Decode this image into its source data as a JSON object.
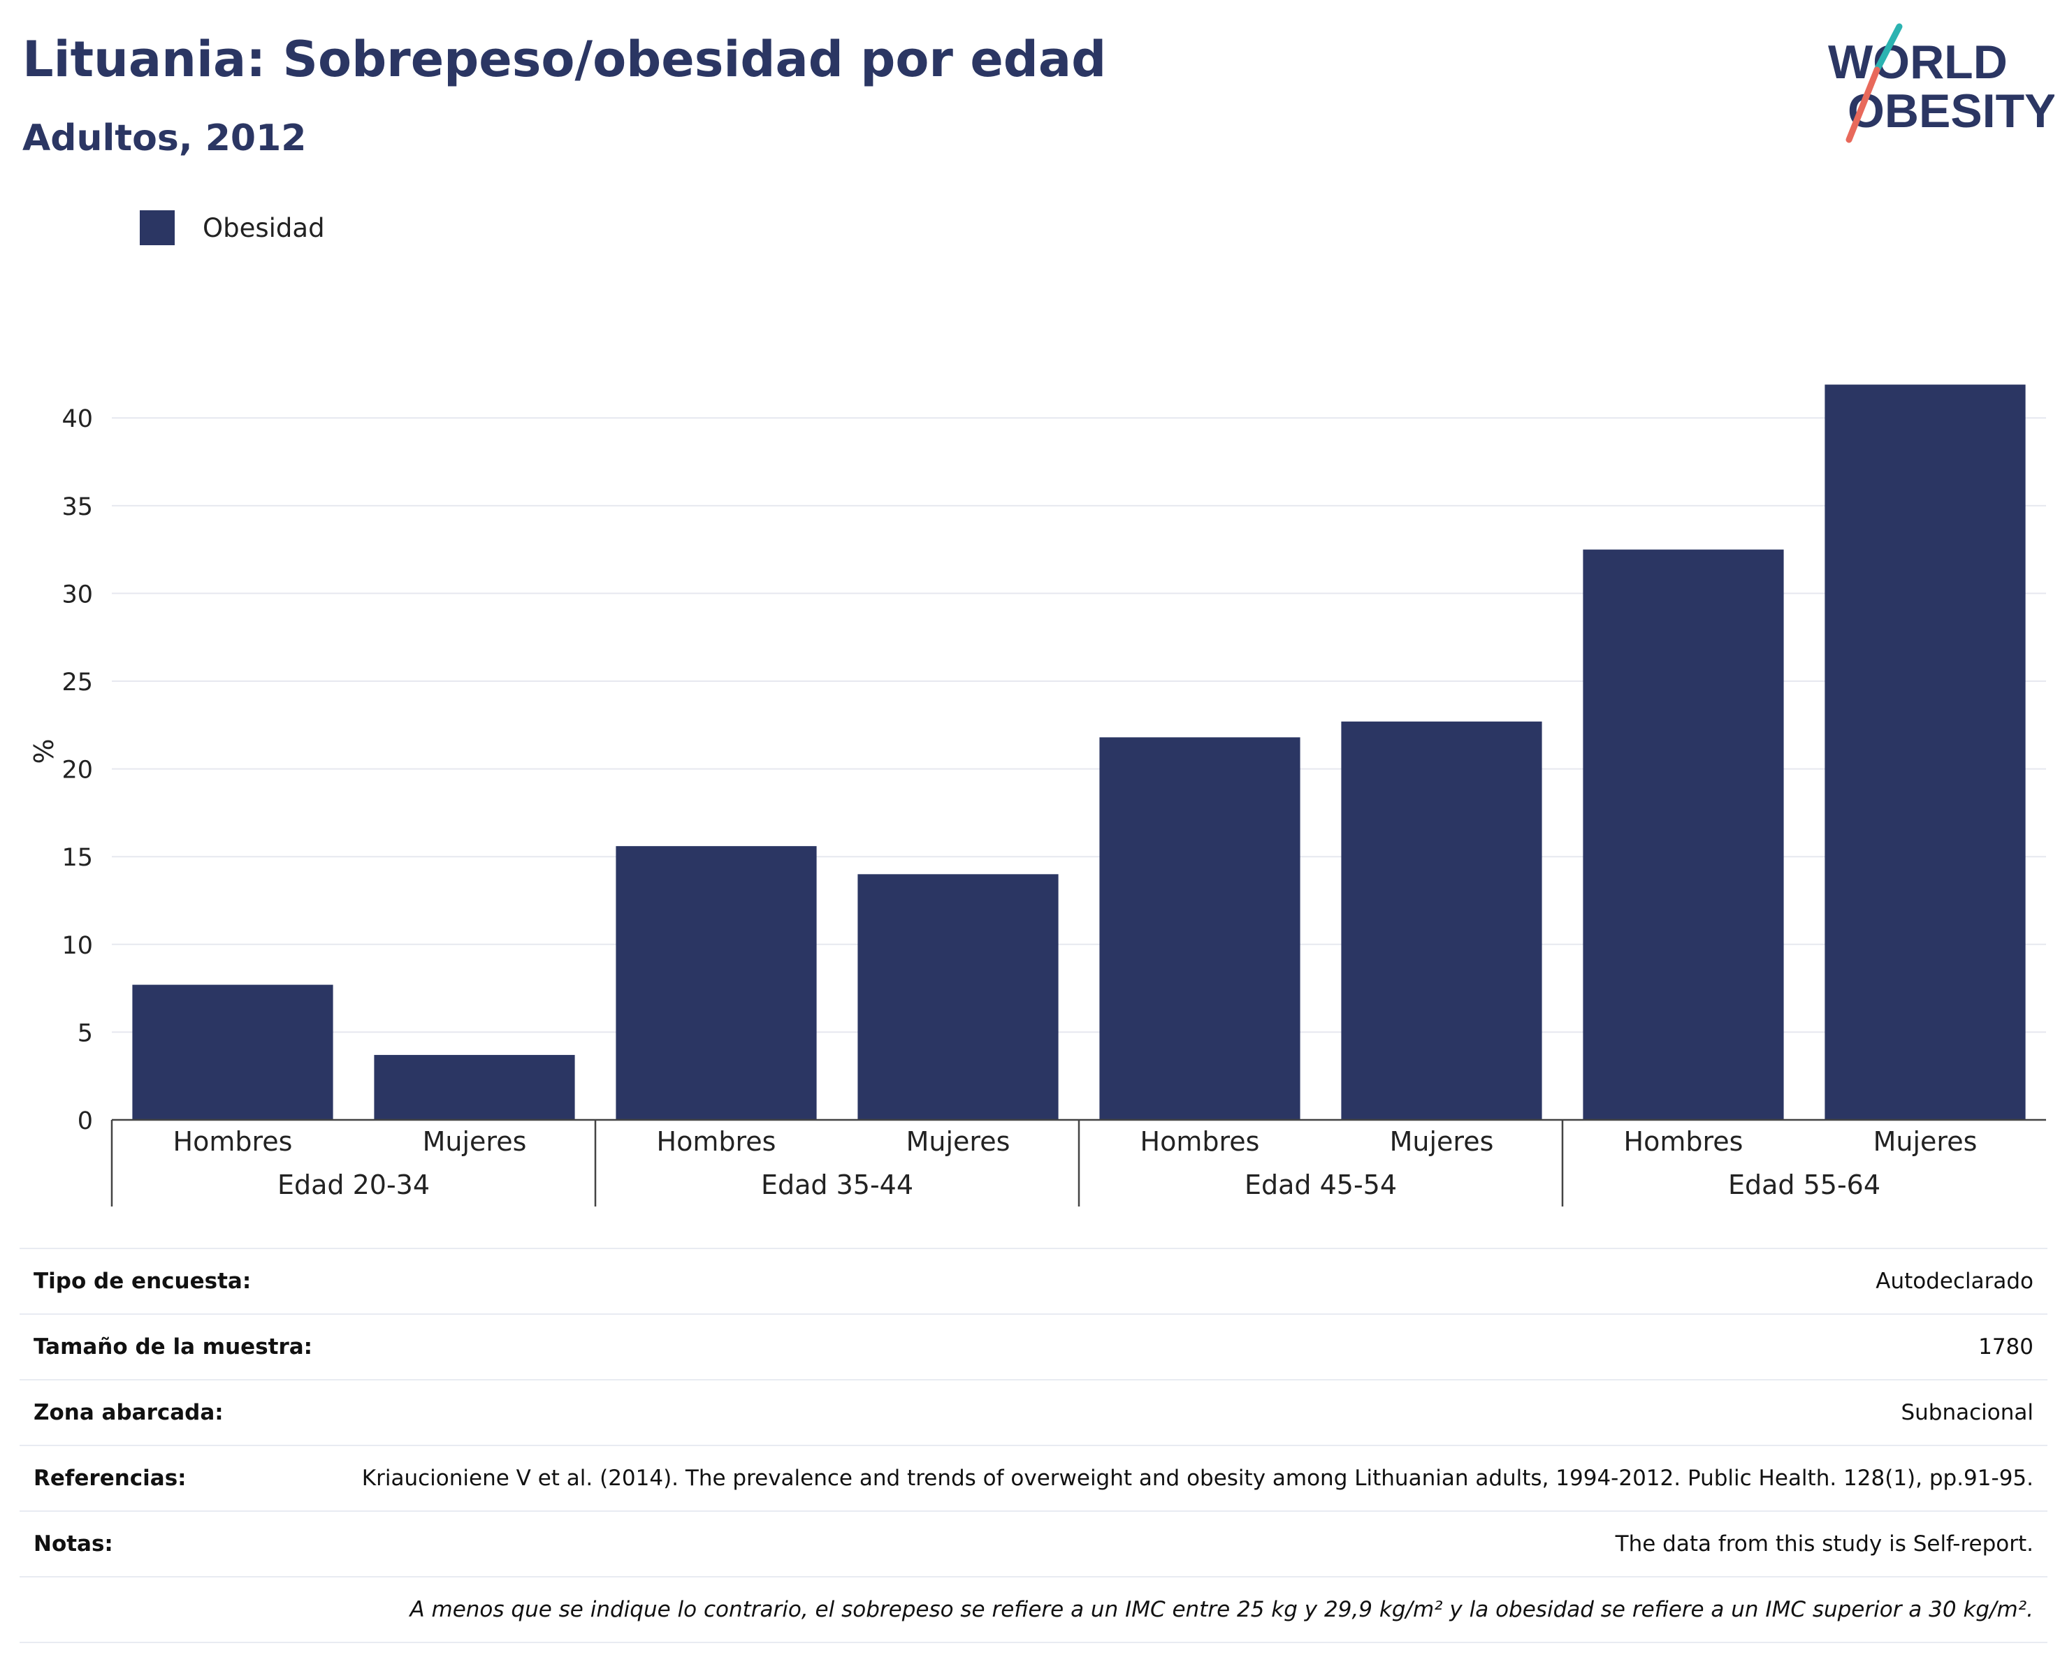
{
  "header": {
    "title": "Lituania: Sobrepeso/obesidad por edad",
    "subtitle": "Adultos, 2012"
  },
  "logo": {
    "line1": "WORLD",
    "line2": "OBESITY",
    "icon": "world-obesity-logo"
  },
  "legend": {
    "items": [
      {
        "label": "Obesidad",
        "color": "#2b3663"
      }
    ]
  },
  "chart_data": {
    "type": "bar",
    "ylabel": "%",
    "ylim": [
      0,
      42
    ],
    "yticks": [
      0,
      5,
      10,
      15,
      20,
      25,
      30,
      35,
      40
    ],
    "grid": true,
    "groups": [
      {
        "label": "Edad 20-34",
        "categories": [
          "Hombres",
          "Mujeres"
        ],
        "values": [
          7.7,
          3.7
        ]
      },
      {
        "label": "Edad 35-44",
        "categories": [
          "Hombres",
          "Mujeres"
        ],
        "values": [
          15.6,
          14.0
        ]
      },
      {
        "label": "Edad 45-54",
        "categories": [
          "Hombres",
          "Mujeres"
        ],
        "values": [
          21.8,
          22.7
        ]
      },
      {
        "label": "Edad 55-64",
        "categories": [
          "Hombres",
          "Mujeres"
        ],
        "values": [
          32.5,
          41.9
        ]
      }
    ],
    "series": [
      {
        "name": "Obesidad",
        "color": "#2b3663"
      }
    ]
  },
  "info": {
    "rows": [
      {
        "label": "Tipo de encuesta:",
        "value": "Autodeclarado"
      },
      {
        "label": "Tamaño de la muestra:",
        "value": "1780"
      },
      {
        "label": "Zona abarcada:",
        "value": "Subnacional"
      },
      {
        "label": "Referencias:",
        "value": "Kriaucioniene V et al. (2014). The prevalence and trends of overweight and obesity among Lithuanian adults, 1994-2012. Public Health. 128(1), pp.91-95."
      },
      {
        "label": "Notas:",
        "value": "The data from this study is Self-report."
      }
    ],
    "footnote": "A menos que se indique lo contrario, el sobrepeso se refiere a un IMC entre 25 kg y 29,9 kg/m² y la obesidad se refiere a un IMC superior a 30 kg/m²."
  }
}
